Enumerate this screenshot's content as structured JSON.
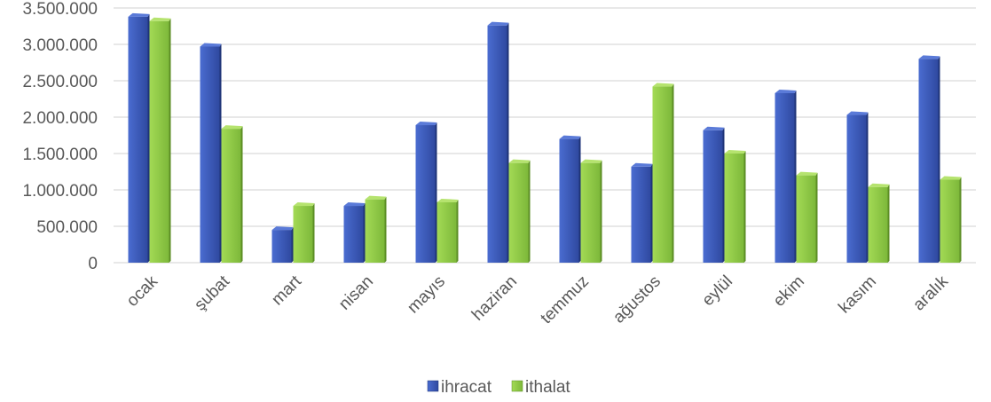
{
  "chart_data": {
    "type": "bar",
    "categories": [
      "ocak",
      "şubat",
      "mart",
      "nisan",
      "mayıs",
      "haziran",
      "temmuz",
      "ağustos",
      "eylül",
      "ekim",
      "kasım",
      "aralık"
    ],
    "series": [
      {
        "name": "ihracat",
        "values": [
          3380000,
          2970000,
          450000,
          780000,
          1890000,
          3260000,
          1700000,
          1320000,
          1820000,
          2330000,
          2030000,
          2800000
        ],
        "color": "#3A57B5"
      },
      {
        "name": "ithalat",
        "values": [
          3320000,
          1840000,
          780000,
          870000,
          830000,
          1370000,
          1370000,
          2420000,
          1500000,
          1200000,
          1040000,
          1140000
        ],
        "color": "#8DC63F"
      }
    ],
    "ylim": [
      0,
      3500000
    ],
    "yticks": [
      0,
      500000,
      1000000,
      1500000,
      2000000,
      2500000,
      3000000,
      3500000
    ],
    "ytick_labels": [
      "0",
      "500.000",
      "1.000.000",
      "1.500.000",
      "2.000.000",
      "2.500.000",
      "3.000.000",
      "3.500.000"
    ],
    "grid": true,
    "legend_position": "bottom"
  }
}
